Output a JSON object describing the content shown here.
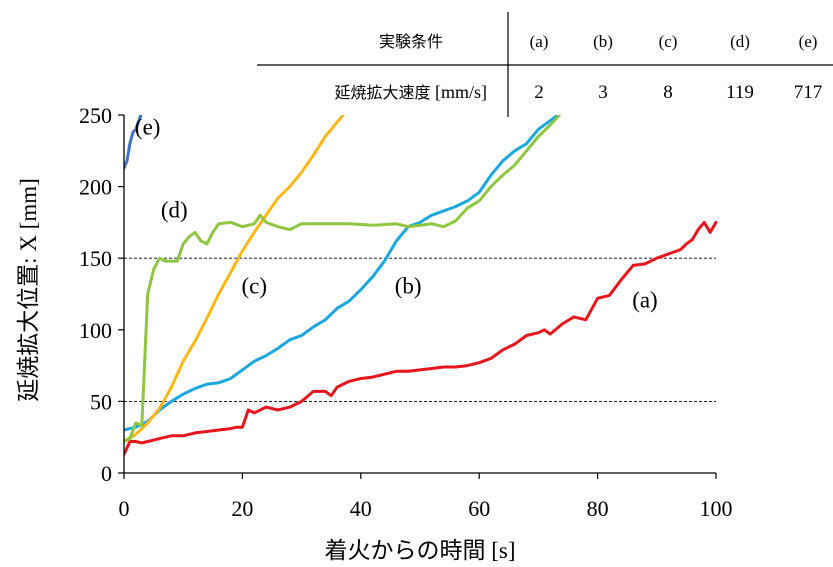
{
  "table": {
    "header_label": "実験条件",
    "row_label_jp": "延焼拡大速度",
    "row_label_unit": " [mm/s]",
    "conditions": [
      "(a)",
      "(b)",
      "(c)",
      "(d)",
      "(e)"
    ],
    "speeds": [
      "2",
      "3",
      "8",
      "119",
      "717"
    ]
  },
  "chart_data": {
    "type": "line",
    "title": "",
    "xlabel_jp": "着火からの時間",
    "xlabel_unit": " [s]",
    "ylabel_jp": "延焼拡大位置",
    "ylabel_unit": ": X [mm]",
    "xlim": [
      0,
      100
    ],
    "ylim": [
      0,
      250
    ],
    "xticks": [
      0,
      20,
      40,
      60,
      80,
      100
    ],
    "yticks": [
      0,
      50,
      100,
      150,
      200,
      250
    ],
    "reference_lines_y": [
      50,
      150
    ],
    "grid": false,
    "series": [
      {
        "name": "(a)",
        "color": "#e8141b",
        "x": [
          0,
          1,
          2,
          3,
          4,
          5,
          6,
          7,
          8,
          10,
          12,
          14,
          16,
          18,
          19,
          20,
          21,
          22,
          24,
          26,
          28,
          30,
          32,
          34,
          35,
          36,
          38,
          40,
          42,
          44,
          46,
          48,
          50,
          52,
          54,
          56,
          58,
          60,
          62,
          64,
          66,
          68,
          70,
          71,
          72,
          74,
          76,
          78,
          80,
          82,
          84,
          86,
          88,
          90,
          92,
          94,
          95,
          96,
          97,
          98,
          99,
          100
        ],
        "y": [
          13,
          22,
          22,
          21,
          22,
          23,
          24,
          25,
          26,
          26,
          28,
          29,
          30,
          31,
          32,
          32,
          44,
          42,
          46,
          44,
          46,
          50,
          57,
          57,
          54,
          60,
          64,
          66,
          67,
          69,
          71,
          71,
          72,
          73,
          74,
          74,
          75,
          77,
          80,
          86,
          90,
          96,
          98,
          100,
          97,
          104,
          109,
          107,
          122,
          124,
          135,
          145,
          146,
          150,
          153,
          156,
          160,
          163,
          170,
          175,
          168,
          175
        ]
      },
      {
        "name": "(b)",
        "color": "#1aa7e0",
        "x": [
          0,
          2,
          4,
          6,
          8,
          10,
          12,
          14,
          16,
          18,
          20,
          22,
          24,
          26,
          28,
          30,
          32,
          34,
          36,
          38,
          40,
          42,
          44,
          46,
          48,
          50,
          52,
          54,
          56,
          58,
          60,
          62,
          64,
          66,
          68,
          70,
          72,
          74
        ],
        "y": [
          30,
          32,
          36,
          44,
          50,
          55,
          59,
          62,
          63,
          66,
          72,
          78,
          82,
          87,
          93,
          96,
          102,
          107,
          115,
          120,
          128,
          137,
          148,
          162,
          172,
          175,
          180,
          183,
          186,
          190,
          196,
          208,
          218,
          225,
          230,
          240,
          246,
          252
        ]
      },
      {
        "name": "(c)",
        "color": "#fbb715",
        "x": [
          0,
          2,
          4,
          6,
          8,
          10,
          12,
          14,
          16,
          18,
          20,
          22,
          24,
          26,
          28,
          30,
          32,
          34,
          36,
          38
        ],
        "y": [
          22,
          27,
          35,
          45,
          60,
          78,
          92,
          108,
          125,
          140,
          155,
          168,
          180,
          192,
          200,
          210,
          222,
          235,
          245,
          255
        ]
      },
      {
        "name": "(d)",
        "color": "#8ec641",
        "x": [
          0,
          1,
          2,
          3,
          4,
          5,
          6,
          7,
          8,
          9,
          10,
          11,
          12,
          13,
          14,
          15,
          16,
          18,
          20,
          22,
          23,
          24,
          26,
          28,
          30,
          34,
          38,
          42,
          46,
          48,
          50,
          52,
          54,
          56,
          58,
          60,
          62,
          64,
          66,
          68,
          70,
          72,
          74
        ],
        "y": [
          22,
          24,
          35,
          33,
          125,
          142,
          150,
          148,
          148,
          148,
          160,
          165,
          168,
          162,
          160,
          168,
          174,
          175,
          172,
          174,
          180,
          175,
          172,
          170,
          174,
          174,
          174,
          173,
          174,
          172,
          173,
          174,
          172,
          176,
          185,
          190,
          200,
          208,
          215,
          225,
          235,
          243,
          252
        ]
      },
      {
        "name": "(e)",
        "color": "#4472c4",
        "x": [
          0,
          0.5,
          1,
          1.5,
          2,
          2.5,
          3
        ],
        "y": [
          213,
          218,
          230,
          238,
          240,
          246,
          252
        ]
      }
    ],
    "annotations": [
      {
        "text": "(e)",
        "x": 4,
        "y": 242
      },
      {
        "text": "(d)",
        "x": 8.5,
        "y": 184
      },
      {
        "text": "(c)",
        "x": 22,
        "y": 131
      },
      {
        "text": "(b)",
        "x": 48,
        "y": 131
      },
      {
        "text": "(a)",
        "x": 88,
        "y": 121
      }
    ]
  }
}
